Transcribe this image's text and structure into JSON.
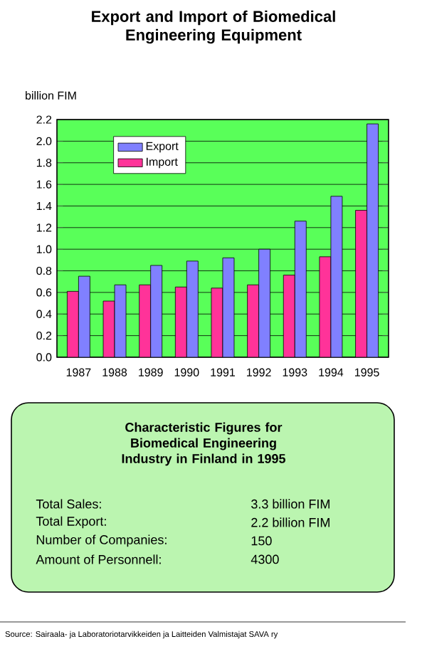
{
  "chart_data": [
    {
      "type": "bar",
      "title": "Export and Import of Biomedical Engineering Equipment",
      "ylabel": "billion FIM",
      "categories": [
        "1987",
        "1988",
        "1989",
        "1990",
        "1991",
        "1992",
        "1993",
        "1994",
        "1995"
      ],
      "series": [
        {
          "name": "Import",
          "color": "#ff3399",
          "values": [
            0.61,
            0.52,
            0.67,
            0.65,
            0.64,
            0.67,
            0.76,
            0.93,
            1.36
          ]
        },
        {
          "name": "Export",
          "color": "#8080ff",
          "values": [
            0.75,
            0.67,
            0.85,
            0.89,
            0.92,
            1.0,
            1.26,
            1.49,
            2.16
          ]
        }
      ],
      "ylim": [
        0,
        2.2
      ],
      "yticks": [
        {
          "value": 0,
          "label": "0.0"
        },
        0.2,
        0.4,
        0.6,
        0.8,
        {
          "value": 1,
          "label": "1.0"
        },
        1.2,
        1.4,
        1.6,
        1.8,
        {
          "value": 2,
          "label": "2.0"
        },
        2.2
      ],
      "grid": "y",
      "legend": "top left",
      "annotations": [
        "Source: Sairaala- ja Laboratoriotarvikkeiden ja Laitteiden Valmistajat SAVA ry"
      ]
    },
    {
      "type": "other",
      "title": "Characteristic Figures for Biomedical Engineering Industry in Finland in 1995",
      "annotations": [
        "Total Sales:",
        "3.3 billion FIM",
        "Total Export:",
        "2.2 billion FIM",
        "Number of Companies:",
        "150",
        "Amount of Personnell:",
        "4300"
      ]
    }
  ]
}
